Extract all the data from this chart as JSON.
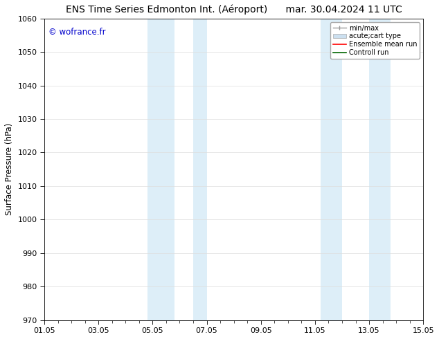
{
  "title": "ENS Time Series Edmonton Int. (Aéroport)      mar. 30.04.2024 11 UTC",
  "ylabel": "Surface Pressure (hPa)",
  "ylim": [
    970,
    1060
  ],
  "yticks": [
    970,
    980,
    990,
    1000,
    1010,
    1020,
    1030,
    1040,
    1050,
    1060
  ],
  "xlim_start": 0,
  "xlim_end": 14,
  "xtick_labels": [
    "01.05",
    "03.05",
    "05.05",
    "07.05",
    "09.05",
    "11.05",
    "13.05",
    "15.05"
  ],
  "xtick_positions": [
    0,
    2,
    4,
    6,
    8,
    10,
    12,
    14
  ],
  "shaded_bands": [
    {
      "x_start": 3.8,
      "x_end": 4.8,
      "color": "#ddeef8"
    },
    {
      "x_start": 5.5,
      "x_end": 6.0,
      "color": "#ddeef8"
    },
    {
      "x_start": 10.2,
      "x_end": 11.0,
      "color": "#ddeef8"
    },
    {
      "x_start": 12.0,
      "x_end": 12.8,
      "color": "#ddeef8"
    }
  ],
  "copyright_text": "© wofrance.fr",
  "copyright_color": "#0000cc",
  "copyright_fontsize": 8.5,
  "legend_labels": [
    "min/max",
    "acute;cart type",
    "Ensemble mean run",
    "Controll run"
  ],
  "legend_colors": [
    "#999999",
    "#cce0f0",
    "#ff0000",
    "#006600"
  ],
  "bg_color": "#ffffff",
  "grid_color": "#dddddd",
  "title_fontsize": 10,
  "axis_fontsize": 8.5,
  "tick_fontsize": 8
}
